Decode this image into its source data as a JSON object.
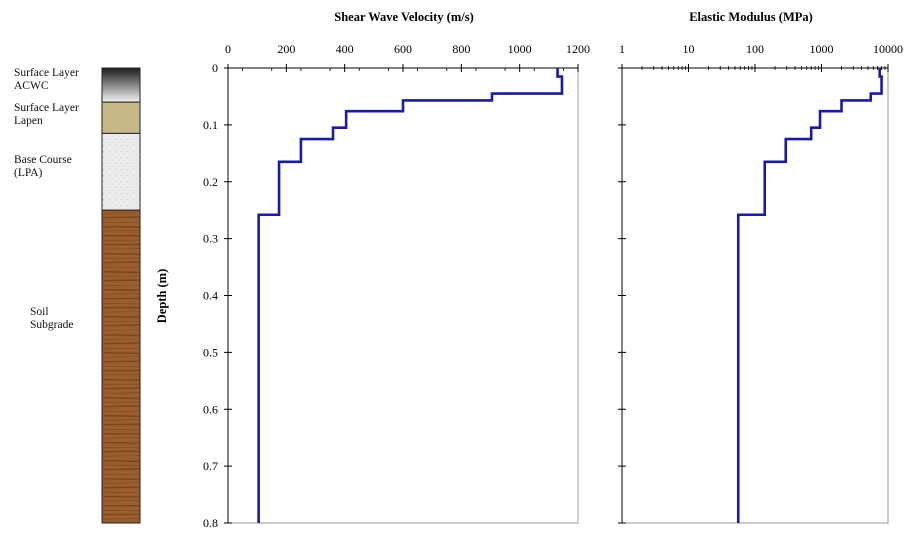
{
  "soil_column": {
    "layers": [
      {
        "name": "Surface Layer\nACWC",
        "top": 0.0,
        "bottom": 0.06,
        "texture": "gradient-dark"
      },
      {
        "name": "Surface Layer\nLapen",
        "top": 0.06,
        "bottom": 0.115,
        "texture": "tan"
      },
      {
        "name": "Base Course\n(LPA)",
        "top": 0.115,
        "bottom": 0.25,
        "texture": "speckled-gray"
      },
      {
        "name": "Soil\nSubgrade",
        "top": 0.25,
        "bottom": 0.8,
        "texture": "brown-striped"
      }
    ]
  },
  "depth_axis": {
    "label": "Depth (m)",
    "ticks": [
      0,
      0.1,
      0.2,
      0.3,
      0.4,
      0.5,
      0.6,
      0.7,
      0.8
    ],
    "tick_labels": [
      "0",
      "0.1",
      "0.2",
      "0.3",
      "0.4",
      "0.5",
      "0.6",
      "0.7",
      "0.8"
    ]
  },
  "colors": {
    "line": "#1a1aa6",
    "axis": "#000000",
    "acwc_top": "#1c1c1c",
    "acwc_bottom": "#f2f2f2",
    "lapen": "#c8b98b",
    "base_course": "#ececec",
    "subgrade": "#9a5e2e",
    "subgrade_stripe": "#6e3e18"
  },
  "chart_data": [
    {
      "type": "line",
      "title": "Shear Wave Velocity (m/s)",
      "xlabel": "",
      "ylabel": "Depth (m)",
      "xlim": [
        0,
        1200
      ],
      "ylim": [
        0,
        0.8
      ],
      "x_scale": "linear",
      "y_inverted": true,
      "x_ticks": [
        0,
        200,
        400,
        600,
        800,
        1000,
        1200
      ],
      "x_tick_labels": [
        "0",
        "200",
        "400",
        "600",
        "800",
        "1000",
        "1200"
      ],
      "series": [
        {
          "points": [
            [
              1130,
              0.0
            ],
            [
              1130,
              0.015
            ],
            [
              1145,
              0.015
            ],
            [
              1145,
              0.045
            ],
            [
              905,
              0.045
            ],
            [
              905,
              0.057
            ],
            [
              600,
              0.057
            ],
            [
              600,
              0.076
            ],
            [
              405,
              0.076
            ],
            [
              405,
              0.105
            ],
            [
              360,
              0.105
            ],
            [
              360,
              0.125
            ],
            [
              250,
              0.125
            ],
            [
              250,
              0.165
            ],
            [
              175,
              0.165
            ],
            [
              175,
              0.258
            ],
            [
              105,
              0.258
            ],
            [
              105,
              0.8
            ]
          ]
        }
      ]
    },
    {
      "type": "line",
      "title": "Elastic Modulus (MPa)",
      "xlabel": "",
      "ylabel": "",
      "xlim": [
        1,
        10000
      ],
      "ylim": [
        0,
        0.8
      ],
      "x_scale": "log",
      "y_inverted": true,
      "x_ticks": [
        1,
        10,
        100,
        1000,
        10000
      ],
      "x_tick_labels": [
        "1",
        "10",
        "100",
        "1000",
        "10000"
      ],
      "series": [
        {
          "points": [
            [
              7500,
              0.0
            ],
            [
              7500,
              0.015
            ],
            [
              8000,
              0.015
            ],
            [
              8000,
              0.045
            ],
            [
              5500,
              0.045
            ],
            [
              5500,
              0.057
            ],
            [
              2000,
              0.057
            ],
            [
              2000,
              0.076
            ],
            [
              950,
              0.076
            ],
            [
              950,
              0.105
            ],
            [
              700,
              0.105
            ],
            [
              700,
              0.125
            ],
            [
              290,
              0.125
            ],
            [
              290,
              0.165
            ],
            [
              140,
              0.165
            ],
            [
              140,
              0.258
            ],
            [
              56,
              0.258
            ],
            [
              56,
              0.8
            ]
          ]
        }
      ]
    }
  ]
}
